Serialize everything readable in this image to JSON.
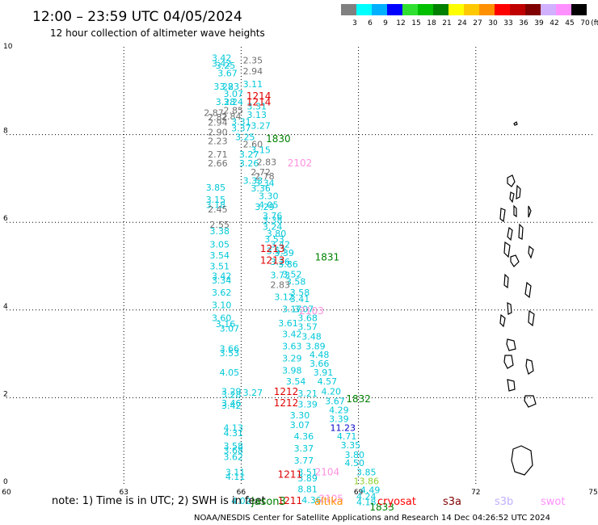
{
  "header": {
    "title": "12:00 – 23:59 UTC 04/05/2024",
    "subtitle": "12 hour collection of altimeter wave heights"
  },
  "colorbar": {
    "colors": [
      "#808080",
      "#00ffff",
      "#00b0ff",
      "#0000ff",
      "#30e030",
      "#00c000",
      "#008000",
      "#ffff00",
      "#ffc800",
      "#ff9000",
      "#ff0000",
      "#c00000",
      "#800000",
      "#d0b0ff",
      "#ff90ff",
      "#000000"
    ],
    "labels": [
      "3",
      "6",
      "9",
      "12",
      "15",
      "18",
      "21",
      "24",
      "27",
      "30",
      "33",
      "36",
      "39",
      "42",
      "45",
      "70",
      "(ft)"
    ]
  },
  "chart_data": {
    "type": "scatter",
    "title": "12:00 – 23:59 UTC 04/05/2024",
    "subtitle": "12 hour collection of altimeter wave heights",
    "xlim": [
      60,
      75
    ],
    "ylim": [
      0,
      10
    ],
    "x_ticks": [
      "60",
      "63",
      "66",
      "69",
      "72",
      "75"
    ],
    "y_ticks": [
      "0",
      "2",
      "4",
      "6",
      "8",
      "10"
    ],
    "grid": true,
    "wave_labels": [
      {
        "x": 65.5,
        "y": 9.75,
        "t": "3.42",
        "c": "#00c8d8"
      },
      {
        "x": 65.5,
        "y": 9.62,
        "t": "3.42",
        "c": "#00c8d8"
      },
      {
        "x": 65.6,
        "y": 9.58,
        "t": "3.25",
        "c": "#00c8d8"
      },
      {
        "x": 65.65,
        "y": 9.4,
        "t": "3.67",
        "c": "#00c8d8"
      },
      {
        "x": 65.55,
        "y": 9.1,
        "t": "3.28",
        "c": "#00c8d8"
      },
      {
        "x": 65.7,
        "y": 9.1,
        "t": "3.23",
        "c": "#00c8d8"
      },
      {
        "x": 65.8,
        "y": 8.93,
        "t": "3.07",
        "c": "#00c8d8"
      },
      {
        "x": 65.6,
        "y": 8.75,
        "t": "3.28",
        "c": "#00c8d8"
      },
      {
        "x": 65.8,
        "y": 8.75,
        "t": "3.24",
        "c": "#00c8d8"
      },
      {
        "x": 66.3,
        "y": 9.7,
        "t": "2.35",
        "c": "#707070"
      },
      {
        "x": 66.3,
        "y": 9.45,
        "t": "2.94",
        "c": "#707070"
      },
      {
        "x": 66.3,
        "y": 9.15,
        "t": "3.11",
        "c": "#00c8d8"
      },
      {
        "x": 66.4,
        "y": 8.65,
        "t": "3.31",
        "c": "#00c8d8"
      },
      {
        "x": 66.4,
        "y": 8.45,
        "t": "3.13",
        "c": "#00c8d8"
      },
      {
        "x": 66.5,
        "y": 8.2,
        "t": "3.27",
        "c": "#00c8d8"
      },
      {
        "x": 65.8,
        "y": 8.55,
        "t": "2.85",
        "c": "#707070"
      },
      {
        "x": 65.3,
        "y": 8.5,
        "t": "2.87",
        "c": "#707070"
      },
      {
        "x": 65.4,
        "y": 8.4,
        "t": "2.82",
        "c": "#707070"
      },
      {
        "x": 65.75,
        "y": 8.42,
        "t": "2.84",
        "c": "#707070"
      },
      {
        "x": 65.4,
        "y": 8.28,
        "t": "2.94",
        "c": "#707070"
      },
      {
        "x": 65.4,
        "y": 8.06,
        "t": "2.90",
        "c": "#707070"
      },
      {
        "x": 66.0,
        "y": 8.3,
        "t": "3.31",
        "c": "#00c8d8"
      },
      {
        "x": 66.0,
        "y": 8.15,
        "t": "3.37",
        "c": "#00c8d8"
      },
      {
        "x": 65.4,
        "y": 7.85,
        "t": "2.23",
        "c": "#707070"
      },
      {
        "x": 66.1,
        "y": 7.95,
        "t": "3.25",
        "c": "#00c8d8"
      },
      {
        "x": 66.3,
        "y": 7.78,
        "t": "2.60",
        "c": "#707070"
      },
      {
        "x": 66.5,
        "y": 7.65,
        "t": "3.15",
        "c": "#00c8d8"
      },
      {
        "x": 65.4,
        "y": 7.55,
        "t": "2.71",
        "c": "#707070"
      },
      {
        "x": 66.2,
        "y": 7.55,
        "t": "3.27",
        "c": "#00c8d8"
      },
      {
        "x": 65.4,
        "y": 7.35,
        "t": "2.66",
        "c": "#707070"
      },
      {
        "x": 66.2,
        "y": 7.35,
        "t": "3.26",
        "c": "#00c8d8"
      },
      {
        "x": 66.65,
        "y": 7.38,
        "t": "2.83",
        "c": "#707070"
      },
      {
        "x": 66.5,
        "y": 7.15,
        "t": "2.72",
        "c": "#707070"
      },
      {
        "x": 66.6,
        "y": 7.05,
        "t": "2.78",
        "c": "#707070"
      },
      {
        "x": 66.3,
        "y": 6.95,
        "t": "3.33",
        "c": "#00c8d8"
      },
      {
        "x": 66.6,
        "y": 6.9,
        "t": "3.34",
        "c": "#00c8d8"
      },
      {
        "x": 65.35,
        "y": 6.8,
        "t": "3.85",
        "c": "#00c8d8"
      },
      {
        "x": 66.5,
        "y": 6.78,
        "t": "3.36",
        "c": "#00c8d8"
      },
      {
        "x": 66.7,
        "y": 6.6,
        "t": "3.30",
        "c": "#00c8d8"
      },
      {
        "x": 65.35,
        "y": 6.52,
        "t": "3.15",
        "c": "#00c8d8"
      },
      {
        "x": 65.35,
        "y": 6.4,
        "t": "3.18",
        "c": "#00c8d8"
      },
      {
        "x": 66.7,
        "y": 6.4,
        "t": "4.05",
        "c": "#00c8d8"
      },
      {
        "x": 66.6,
        "y": 6.35,
        "t": "3.29",
        "c": "#00c8d8"
      },
      {
        "x": 65.4,
        "y": 6.3,
        "t": "2.45",
        "c": "#707070"
      },
      {
        "x": 66.8,
        "y": 6.15,
        "t": "3.76",
        "c": "#00c8d8"
      },
      {
        "x": 66.8,
        "y": 6.05,
        "t": "3.38",
        "c": "#00c8d8"
      },
      {
        "x": 65.45,
        "y": 5.95,
        "t": "2.55",
        "c": "#707070"
      },
      {
        "x": 66.8,
        "y": 5.9,
        "t": "3.24",
        "c": "#00c8d8"
      },
      {
        "x": 65.45,
        "y": 5.8,
        "t": "3.38",
        "c": "#00c8d8"
      },
      {
        "x": 66.9,
        "y": 5.75,
        "t": "3.80",
        "c": "#00c8d8"
      },
      {
        "x": 66.85,
        "y": 5.62,
        "t": "3.53",
        "c": "#00c8d8"
      },
      {
        "x": 65.45,
        "y": 5.5,
        "t": "3.05",
        "c": "#00c8d8"
      },
      {
        "x": 67.0,
        "y": 5.5,
        "t": "3.42",
        "c": "#00c8d8"
      },
      {
        "x": 66.9,
        "y": 5.35,
        "t": "3.53",
        "c": "#00c8d8"
      },
      {
        "x": 67.1,
        "y": 5.3,
        "t": "3.39",
        "c": "#00c8d8"
      },
      {
        "x": 65.45,
        "y": 5.25,
        "t": "3.54",
        "c": "#00c8d8"
      },
      {
        "x": 67.0,
        "y": 5.1,
        "t": "3.26",
        "c": "#00c8d8"
      },
      {
        "x": 65.45,
        "y": 5.0,
        "t": "3.51",
        "c": "#00c8d8"
      },
      {
        "x": 67.2,
        "y": 5.05,
        "t": "3.86",
        "c": "#00c8d8"
      },
      {
        "x": 67.3,
        "y": 4.82,
        "t": "3.52",
        "c": "#00c8d8"
      },
      {
        "x": 67.0,
        "y": 4.8,
        "t": "3.73",
        "c": "#00c8d8"
      },
      {
        "x": 65.5,
        "y": 4.78,
        "t": "3.42",
        "c": "#00c8d8"
      },
      {
        "x": 65.5,
        "y": 4.68,
        "t": "3.34",
        "c": "#00c8d8"
      },
      {
        "x": 67.4,
        "y": 4.65,
        "t": "3.58",
        "c": "#00c8d8"
      },
      {
        "x": 67.0,
        "y": 4.58,
        "t": "2.83",
        "c": "#707070"
      },
      {
        "x": 65.5,
        "y": 4.4,
        "t": "3.62",
        "c": "#00c8d8"
      },
      {
        "x": 67.5,
        "y": 4.4,
        "t": "3.58",
        "c": "#00c8d8"
      },
      {
        "x": 67.1,
        "y": 4.3,
        "t": "3.12",
        "c": "#00c8d8"
      },
      {
        "x": 67.5,
        "y": 4.25,
        "t": "3.41",
        "c": "#00c8d8"
      },
      {
        "x": 65.5,
        "y": 4.12,
        "t": "3.10",
        "c": "#00c8d8"
      },
      {
        "x": 67.3,
        "y": 4.02,
        "t": "3.17",
        "c": "#00c8d8"
      },
      {
        "x": 67.6,
        "y": 4.02,
        "t": "3.07",
        "c": "#00c8d8"
      },
      {
        "x": 65.5,
        "y": 3.82,
        "t": "3.60",
        "c": "#00c8d8"
      },
      {
        "x": 67.7,
        "y": 3.82,
        "t": "3.68",
        "c": "#00c8d8"
      },
      {
        "x": 67.2,
        "y": 3.7,
        "t": "3.61",
        "c": "#00c8d8"
      },
      {
        "x": 65.6,
        "y": 3.68,
        "t": "3.16",
        "c": "#00c8d8"
      },
      {
        "x": 67.7,
        "y": 3.62,
        "t": "3.57",
        "c": "#00c8d8"
      },
      {
        "x": 65.7,
        "y": 3.58,
        "t": "3.07",
        "c": "#00c8d8"
      },
      {
        "x": 67.3,
        "y": 3.45,
        "t": "3.42",
        "c": "#00c8d8"
      },
      {
        "x": 67.8,
        "y": 3.4,
        "t": "3.48",
        "c": "#00c8d8"
      },
      {
        "x": 67.3,
        "y": 3.18,
        "t": "3.63",
        "c": "#00c8d8"
      },
      {
        "x": 67.9,
        "y": 3.18,
        "t": "3.89",
        "c": "#00c8d8"
      },
      {
        "x": 65.7,
        "y": 3.12,
        "t": "3.66",
        "c": "#00c8d8"
      },
      {
        "x": 65.7,
        "y": 3.02,
        "t": "3.53",
        "c": "#00c8d8"
      },
      {
        "x": 68.0,
        "y": 2.98,
        "t": "4.48",
        "c": "#00c8d8"
      },
      {
        "x": 67.3,
        "y": 2.9,
        "t": "3.29",
        "c": "#00c8d8"
      },
      {
        "x": 68.0,
        "y": 2.78,
        "t": "3.66",
        "c": "#00c8d8"
      },
      {
        "x": 67.3,
        "y": 2.62,
        "t": "3.98",
        "c": "#00c8d8"
      },
      {
        "x": 65.7,
        "y": 2.58,
        "t": "4.05",
        "c": "#00c8d8"
      },
      {
        "x": 68.1,
        "y": 2.58,
        "t": "3.91",
        "c": "#00c8d8"
      },
      {
        "x": 67.4,
        "y": 2.38,
        "t": "3.54",
        "c": "#00c8d8"
      },
      {
        "x": 68.2,
        "y": 2.38,
        "t": "4.57",
        "c": "#00c8d8"
      },
      {
        "x": 65.75,
        "y": 2.15,
        "t": "3.29",
        "c": "#00c8d8"
      },
      {
        "x": 65.75,
        "y": 2.07,
        "t": "3.28",
        "c": "#00c8d8"
      },
      {
        "x": 66.3,
        "y": 2.12,
        "t": "3.27",
        "c": "#00c8d8"
      },
      {
        "x": 67.7,
        "y": 2.1,
        "t": "3.21",
        "c": "#00c8d8"
      },
      {
        "x": 68.3,
        "y": 2.15,
        "t": "4.20",
        "c": "#00c8d8"
      },
      {
        "x": 65.75,
        "y": 1.88,
        "t": "3.46",
        "c": "#00c8d8"
      },
      {
        "x": 65.75,
        "y": 1.82,
        "t": "3.42",
        "c": "#00c8d8"
      },
      {
        "x": 67.7,
        "y": 1.85,
        "t": "3.39",
        "c": "#00c8d8"
      },
      {
        "x": 68.4,
        "y": 1.92,
        "t": "3.67",
        "c": "#00c8d8"
      },
      {
        "x": 67.5,
        "y": 1.6,
        "t": "3.30",
        "c": "#00c8d8"
      },
      {
        "x": 68.5,
        "y": 1.72,
        "t": "4.29",
        "c": "#00c8d8"
      },
      {
        "x": 68.5,
        "y": 1.52,
        "t": "3.39",
        "c": "#00c8d8"
      },
      {
        "x": 67.5,
        "y": 1.38,
        "t": "3.07",
        "c": "#00c8d8"
      },
      {
        "x": 68.6,
        "y": 1.32,
        "t": "11.23",
        "c": "#0000c8"
      },
      {
        "x": 65.8,
        "y": 1.32,
        "t": "4.13",
        "c": "#00c8d8"
      },
      {
        "x": 65.8,
        "y": 1.2,
        "t": "4.31",
        "c": "#00c8d8"
      },
      {
        "x": 67.6,
        "y": 1.12,
        "t": "4.36",
        "c": "#00c8d8"
      },
      {
        "x": 68.7,
        "y": 1.12,
        "t": "4.71",
        "c": "#00c8d8"
      },
      {
        "x": 65.8,
        "y": 0.9,
        "t": "3.58",
        "c": "#00c8d8"
      },
      {
        "x": 65.8,
        "y": 0.8,
        "t": "3.68",
        "c": "#00c8d8"
      },
      {
        "x": 67.6,
        "y": 0.85,
        "t": "3.37",
        "c": "#00c8d8"
      },
      {
        "x": 68.8,
        "y": 0.92,
        "t": "3.35",
        "c": "#00c8d8"
      },
      {
        "x": 65.8,
        "y": 0.65,
        "t": "3.62",
        "c": "#00c8d8"
      },
      {
        "x": 67.6,
        "y": 0.57,
        "t": "3.77",
        "c": "#00c8d8"
      },
      {
        "x": 68.9,
        "y": 0.7,
        "t": "3.80",
        "c": "#00c8d8"
      },
      {
        "x": 68.9,
        "y": 0.52,
        "t": "4.50",
        "c": "#00c8d8"
      },
      {
        "x": 65.85,
        "y": 0.3,
        "t": "3.11",
        "c": "#00c8d8"
      },
      {
        "x": 65.85,
        "y": 0.2,
        "t": "4.11",
        "c": "#00c8d8"
      },
      {
        "x": 67.7,
        "y": 0.3,
        "t": "3.51",
        "c": "#00c8d8"
      },
      {
        "x": 67.7,
        "y": 0.17,
        "t": "3.89",
        "c": "#00c8d8"
      },
      {
        "x": 69.2,
        "y": 0.3,
        "t": "3.85",
        "c": "#00c8d8"
      },
      {
        "x": 69.2,
        "y": 0.1,
        "t": "13.86",
        "c": "#90d030"
      },
      {
        "x": 67.7,
        "y": -0.08,
        "t": "8.81",
        "c": "#00c8d8"
      },
      {
        "x": 69.3,
        "y": -0.1,
        "t": "4.49",
        "c": "#00c8d8"
      },
      {
        "x": 69.2,
        "y": -0.25,
        "t": "4.24",
        "c": "#00c8d8"
      },
      {
        "x": 66.0,
        "y": -0.35,
        "t": "4.02",
        "c": "#00c8d8"
      },
      {
        "x": 67.8,
        "y": -0.33,
        "t": "4.36",
        "c": "#00c8d8"
      },
      {
        "x": 69.2,
        "y": -0.38,
        "t": "4.18",
        "c": "#00c8d8"
      }
    ],
    "satellite_labels": [
      {
        "x": 66.45,
        "y": 8.88,
        "t": "1214",
        "c": "#e00000"
      },
      {
        "x": 66.45,
        "y": 8.74,
        "t": "1214",
        "c": "#e00000"
      },
      {
        "x": 66.95,
        "y": 7.9,
        "t": "1830",
        "c": "#008000"
      },
      {
        "x": 67.5,
        "y": 7.35,
        "t": "2102",
        "c": "#ff90e0"
      },
      {
        "x": 66.8,
        "y": 5.4,
        "t": "1213",
        "c": "#e00000"
      },
      {
        "x": 66.8,
        "y": 5.13,
        "t": "1213",
        "c": "#e00000"
      },
      {
        "x": 68.2,
        "y": 5.2,
        "t": "1831",
        "c": "#008000"
      },
      {
        "x": 67.8,
        "y": 3.98,
        "t": "2103",
        "c": "#ff90e0"
      },
      {
        "x": 67.15,
        "y": 2.14,
        "t": "1212",
        "c": "#e00000"
      },
      {
        "x": 67.15,
        "y": 1.88,
        "t": "1212",
        "c": "#e00000"
      },
      {
        "x": 69.0,
        "y": 1.97,
        "t": "1832",
        "c": "#008000"
      },
      {
        "x": 68.2,
        "y": 0.3,
        "t": "2104",
        "c": "#ff90e0"
      },
      {
        "x": 67.25,
        "y": 0.25,
        "t": "1211",
        "c": "#e00000"
      },
      {
        "x": 68.3,
        "y": -0.3,
        "t": "2105",
        "c": "#ff90e0"
      },
      {
        "x": 67.25,
        "y": -0.35,
        "t": "1211",
        "c": "#e00000"
      },
      {
        "x": 69.6,
        "y": -0.5,
        "t": "1833",
        "c": "#008000"
      }
    ]
  },
  "footer": {
    "note": "note:  1) Time is in UTC; 2) SWH is in feet",
    "legend": [
      {
        "label": "jason3",
        "color": "#008000"
      },
      {
        "label": "altika",
        "color": "#ff9000"
      },
      {
        "label": "cryosat",
        "color": "#ff0000"
      },
      {
        "label": "s3a",
        "color": "#800000"
      },
      {
        "label": "s3b",
        "color": "#c0b0ff"
      },
      {
        "label": "swot",
        "color": "#ff90ff"
      }
    ],
    "credit": "NOAA/NESDIS Center for Satellite Applications and Research    14 Dec 04:26:52 UTC 2024"
  }
}
